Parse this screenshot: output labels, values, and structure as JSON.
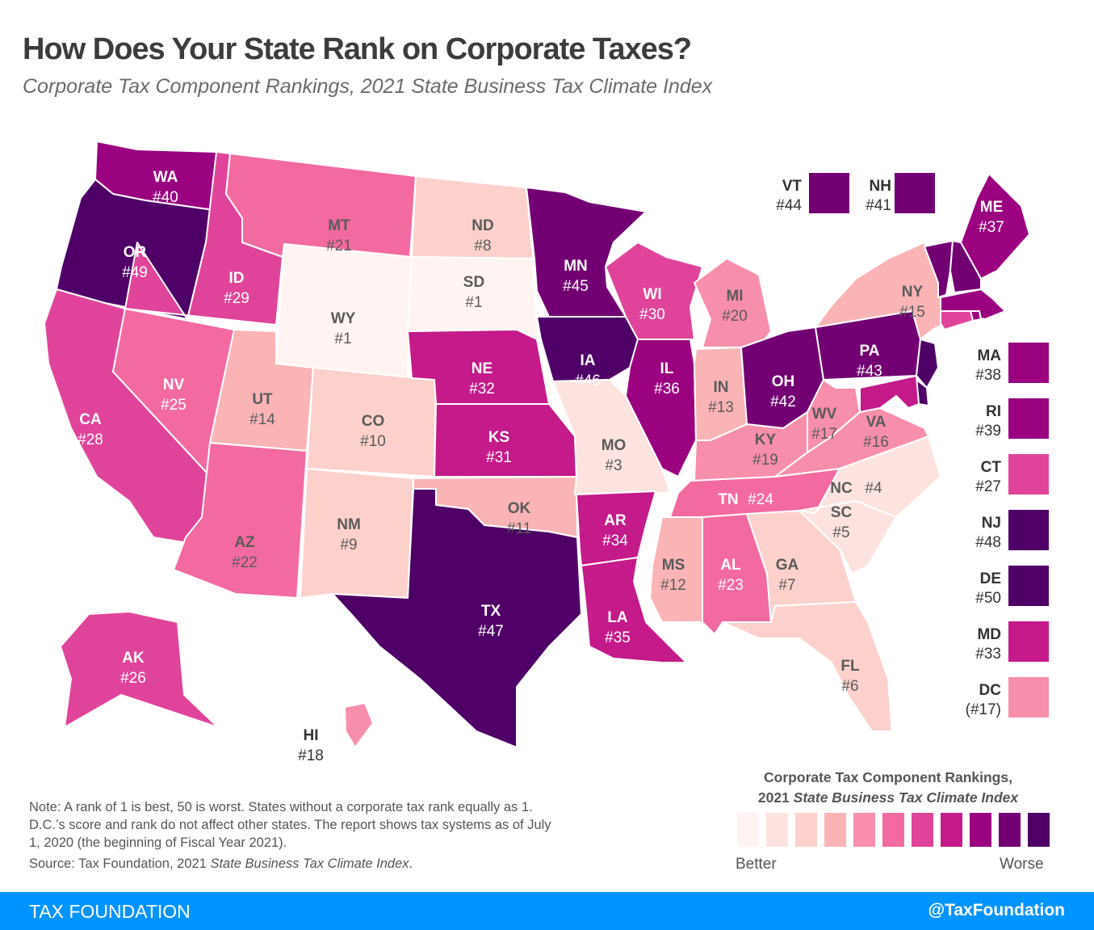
{
  "header": {
    "title": "How Does Your State Rank on Corporate Taxes?",
    "subtitle": "Corporate Tax Component Rankings, 2021 State Business Tax Climate Index"
  },
  "colors": {
    "scale": [
      "#fff4f1",
      "#fde3df",
      "#fcd1cc",
      "#fab4b6",
      "#f78fac",
      "#f36aa1",
      "#e0449a",
      "#c41a8a",
      "#9a0280",
      "#720072",
      "#4e0066"
    ],
    "label_dark": "#5a5a5a",
    "label_light": "#ffffff",
    "footer": "#0094ff"
  },
  "chart_data": {
    "type": "choropleth",
    "title": "How Does Your State Rank on Corporate Taxes?",
    "subtitle": "Corporate Tax Component Rankings, 2021 State Business Tax Climate Index",
    "scale_direction": "1 = best, 50 = worst",
    "states": [
      {
        "abbr": "WA",
        "rank": 40
      },
      {
        "abbr": "OR",
        "rank": 49
      },
      {
        "abbr": "CA",
        "rank": 28
      },
      {
        "abbr": "ID",
        "rank": 29
      },
      {
        "abbr": "NV",
        "rank": 25
      },
      {
        "abbr": "MT",
        "rank": 21
      },
      {
        "abbr": "WY",
        "rank": 1
      },
      {
        "abbr": "UT",
        "rank": 14
      },
      {
        "abbr": "AZ",
        "rank": 22
      },
      {
        "abbr": "CO",
        "rank": 10
      },
      {
        "abbr": "NM",
        "rank": 9
      },
      {
        "abbr": "ND",
        "rank": 8
      },
      {
        "abbr": "SD",
        "rank": 1
      },
      {
        "abbr": "NE",
        "rank": 32
      },
      {
        "abbr": "KS",
        "rank": 31
      },
      {
        "abbr": "OK",
        "rank": 11
      },
      {
        "abbr": "TX",
        "rank": 47
      },
      {
        "abbr": "MN",
        "rank": 45
      },
      {
        "abbr": "IA",
        "rank": 46
      },
      {
        "abbr": "MO",
        "rank": 3
      },
      {
        "abbr": "AR",
        "rank": 34
      },
      {
        "abbr": "LA",
        "rank": 35
      },
      {
        "abbr": "WI",
        "rank": 30
      },
      {
        "abbr": "IL",
        "rank": 36
      },
      {
        "abbr": "MI",
        "rank": 20
      },
      {
        "abbr": "IN",
        "rank": 13
      },
      {
        "abbr": "OH",
        "rank": 42
      },
      {
        "abbr": "KY",
        "rank": 19
      },
      {
        "abbr": "TN",
        "rank": 24
      },
      {
        "abbr": "MS",
        "rank": 12
      },
      {
        "abbr": "AL",
        "rank": 23
      },
      {
        "abbr": "GA",
        "rank": 7
      },
      {
        "abbr": "FL",
        "rank": 6
      },
      {
        "abbr": "SC",
        "rank": 5
      },
      {
        "abbr": "NC",
        "rank": 4
      },
      {
        "abbr": "VA",
        "rank": 16
      },
      {
        "abbr": "WV",
        "rank": 17
      },
      {
        "abbr": "PA",
        "rank": 43
      },
      {
        "abbr": "NY",
        "rank": 15
      },
      {
        "abbr": "ME",
        "rank": 37
      },
      {
        "abbr": "AK",
        "rank": 26
      },
      {
        "abbr": "HI",
        "rank": 18
      },
      {
        "abbr": "VT",
        "rank": 44
      },
      {
        "abbr": "NH",
        "rank": 41
      },
      {
        "abbr": "MA",
        "rank": 38
      },
      {
        "abbr": "RI",
        "rank": 39
      },
      {
        "abbr": "CT",
        "rank": 27
      },
      {
        "abbr": "NJ",
        "rank": 48
      },
      {
        "abbr": "DE",
        "rank": 50
      },
      {
        "abbr": "MD",
        "rank": 33
      },
      {
        "abbr": "DC",
        "rank": 17,
        "label": "(#17)",
        "note": "D.C. does not affect other states"
      }
    ],
    "legend": {
      "title_line1": "Corporate Tax Component Rankings,",
      "title_line2_plain": "2021 ",
      "title_line2_italic": "State Business Tax Climate Index",
      "low_label": "Better",
      "high_label": "Worse",
      "steps": 11
    }
  },
  "side_boxes_top": [
    "VT",
    "NH"
  ],
  "side_boxes_right": [
    "MA",
    "RI",
    "CT",
    "NJ",
    "DE",
    "MD",
    "DC"
  ],
  "notes": {
    "note": "Note: A rank of 1 is best, 50 is worst. States without a corporate tax rank equally as 1. D.C.’s score and rank do not affect other states. The report shows tax systems as of July 1, 2020 (the beginning of Fiscal Year 2021).",
    "source_plain": "Source: Tax Foundation, 2021 ",
    "source_italic": "State Business Tax Climate Index",
    "source_end": "."
  },
  "footer": {
    "brand": "TAX FOUNDATION",
    "handle": "@TaxFoundation"
  }
}
